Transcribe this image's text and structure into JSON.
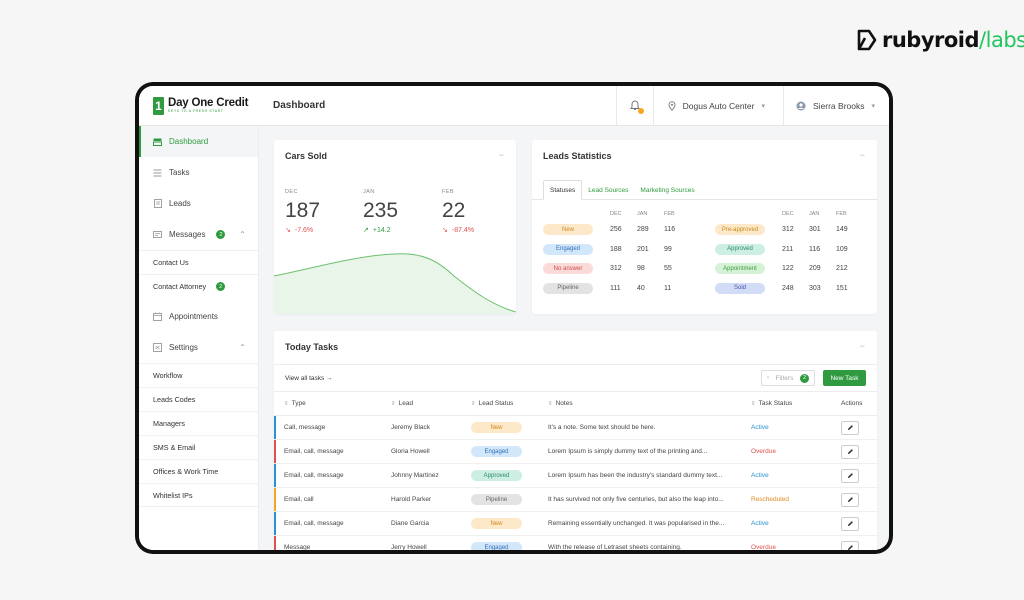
{
  "brand": {
    "name_main": "rubyroid",
    "name_accent": "labs"
  },
  "app": {
    "logo_badge": "1",
    "logo_title": "Day One Credit",
    "logo_sub": "KEYS TO A FRESH START",
    "page_title": "Dashboard",
    "location": "Dogus Auto Center",
    "user": "Sierra Brooks"
  },
  "sidebar": {
    "dashboard": "Dashboard",
    "tasks": "Tasks",
    "leads": "Leads",
    "messages": "Messages",
    "messages_badge": "2",
    "contact_us": "Contact Us",
    "contact_attorney": "Contact Attorney",
    "contact_attorney_badge": "2",
    "appointments": "Appointments",
    "settings": "Settings",
    "settings_items": [
      "Workflow",
      "Leads Codes",
      "Managers",
      "SMS & Email",
      "Offices & Work Time",
      "Whitelist IPs"
    ]
  },
  "cars_sold": {
    "title": "Cars Sold",
    "metrics": [
      {
        "label": "DEC",
        "value": "187",
        "delta": "-7.6%",
        "dir": "down"
      },
      {
        "label": "JAN",
        "value": "235",
        "delta": "+14.2",
        "dir": "up"
      },
      {
        "label": "FEB",
        "value": "22",
        "delta": "-87.4%",
        "dir": "down"
      }
    ]
  },
  "leads_stats": {
    "title": "Leads Statistics",
    "tabs": [
      "Statuses",
      "Lead Sources",
      "Marketing Sources"
    ],
    "months": [
      "DEC",
      "JAN",
      "FEB"
    ],
    "left": [
      {
        "label": "New",
        "bg": "#fde9c9",
        "fg": "#c98a1e",
        "vals": [
          "256",
          "289",
          "116"
        ]
      },
      {
        "label": "Engaged",
        "bg": "#d3e7fb",
        "fg": "#2d6fb8",
        "vals": [
          "188",
          "201",
          "99"
        ]
      },
      {
        "label": "No answer",
        "bg": "#fbdada",
        "fg": "#cf4b4b",
        "vals": [
          "312",
          "98",
          "55"
        ]
      },
      {
        "label": "Pipeline",
        "bg": "#e3e3e3",
        "fg": "#666666",
        "vals": [
          "111",
          "40",
          "11"
        ]
      }
    ],
    "right": [
      {
        "label": "Pre-approved",
        "bg": "#fde9c9",
        "fg": "#c98a1e",
        "vals": [
          "312",
          "301",
          "149"
        ]
      },
      {
        "label": "Approved",
        "bg": "#cdeee2",
        "fg": "#2c8c68",
        "vals": [
          "211",
          "116",
          "109"
        ]
      },
      {
        "label": "Appointment",
        "bg": "#d6f2d6",
        "fg": "#3c9a3c",
        "vals": [
          "122",
          "209",
          "212"
        ]
      },
      {
        "label": "Sold",
        "bg": "#d3dcf6",
        "fg": "#3d54a8",
        "vals": [
          "248",
          "303",
          "151"
        ]
      }
    ]
  },
  "tasks": {
    "title": "Today Tasks",
    "view_all": "View all tasks →",
    "filters": "Filters",
    "filters_badge": "2",
    "new_task": "New Task",
    "headers": {
      "type": "Type",
      "lead": "Lead",
      "lead_status": "Lead Status",
      "notes": "Notes",
      "task_status": "Task Status",
      "actions": "Actions"
    },
    "rows": [
      {
        "edge": "#2d8fd5",
        "type": "Call, message",
        "lead": "Jeremy Black",
        "status": "New",
        "sbg": "#fde9c9",
        "sfg": "#c98a1e",
        "notes": "It's a note. Some text should be here.",
        "task": "Active",
        "tcolor": "#2d8fd5"
      },
      {
        "edge": "#e05252",
        "type": "Email, call, message",
        "lead": "Gloria Howell",
        "status": "Engaged",
        "sbg": "#d3e7fb",
        "sfg": "#2d6fb8",
        "notes": "Lorem Ipsum is simply dummy text of the printing and...",
        "task": "Overdue",
        "tcolor": "#e05252"
      },
      {
        "edge": "#2d8fd5",
        "type": "Email, call, message",
        "lead": "Johnny Martinez",
        "status": "Approved",
        "sbg": "#cdeee2",
        "sfg": "#2c8c68",
        "notes": "Lorem Ipsum has been the industry's standard dummy text...",
        "task": "Active",
        "tcolor": "#2d8fd5"
      },
      {
        "edge": "#f5a623",
        "type": "Email, call",
        "lead": "Harold Parker",
        "status": "Pipeline",
        "sbg": "#e3e3e3",
        "sfg": "#666666",
        "notes": "It has survived not only five centuries, but also the leap into...",
        "task": "Rescheduled",
        "tcolor": "#e08a1e"
      },
      {
        "edge": "#2d8fd5",
        "type": "Email, call, message",
        "lead": "Diane Garcia",
        "status": "New",
        "sbg": "#fde9c9",
        "sfg": "#c98a1e",
        "notes": "Remaining essentially unchanged. It was  popularised in the...",
        "task": "Active",
        "tcolor": "#2d8fd5"
      },
      {
        "edge": "#e05252",
        "type": "Message",
        "lead": "Jerry Howell",
        "status": "Engaged",
        "sbg": "#d3e7fb",
        "sfg": "#2d6fb8",
        "notes": "With the release of Letraset sheets containing.",
        "task": "Overdue",
        "tcolor": "#e05252"
      }
    ]
  }
}
